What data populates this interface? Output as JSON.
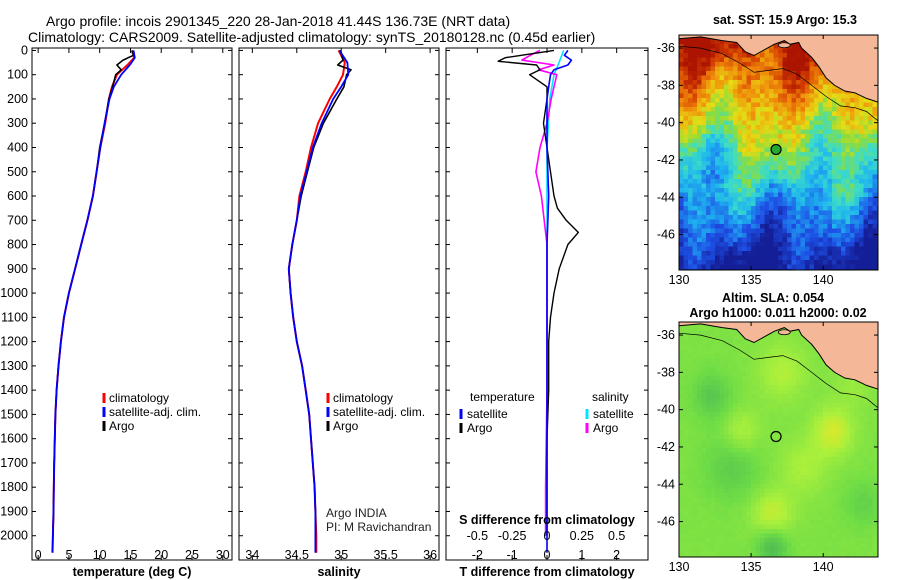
{
  "title": {
    "line1": "Argo profile: incois 2901345_220 28-Jan-2018 41.44S 136.73E (NRT data)",
    "line2": "Climatology: CARS2009. Satellite-adjusted climatology: synTS_20180128.nc (0.45d earlier)"
  },
  "depth_ticks": [
    "0",
    "100",
    "200",
    "300",
    "400",
    "500",
    "600",
    "700",
    "800",
    "900",
    "1000",
    "1100",
    "1200",
    "1300",
    "1400",
    "1500",
    "1600",
    "1700",
    "1800",
    "1900",
    "2000"
  ],
  "colors": {
    "climatology": "#ff0000",
    "satellite": "#0000ff",
    "argo": "#000000",
    "cyan": "#00e5ff",
    "magenta": "#ff00ff",
    "coast": "#000000",
    "land": "#f4b898"
  },
  "panels": [
    {
      "xlabel": "temperature (deg C)",
      "xticks": [
        0,
        5,
        10,
        15,
        20,
        25,
        30
      ],
      "xtick_labels": [
        "0",
        "5",
        "10",
        "15",
        "20",
        "25",
        "30"
      ],
      "xlim": [
        -1,
        31.5
      ],
      "legend": {
        "items": [
          {
            "label": "climatology",
            "color": "#ff0000"
          },
          {
            "label": "satellite-adj. clim.",
            "color": "#0000ff"
          },
          {
            "label": "Argo",
            "color": "#000000"
          }
        ]
      }
    },
    {
      "xlabel": "salinity",
      "xticks": [
        34,
        34.5,
        35,
        35.5,
        36
      ],
      "xtick_labels": [
        "34",
        "34.5",
        "35",
        "35.5",
        "36"
      ],
      "xlim": [
        33.85,
        36.1
      ],
      "legend": {
        "items": [
          {
            "label": "climatology",
            "color": "#ff0000"
          },
          {
            "label": "satellite-adj. clim.",
            "color": "#0000ff"
          },
          {
            "label": "Argo",
            "color": "#000000"
          }
        ]
      },
      "note": [
        "Argo INDIA",
        "PI: M Ravichandran"
      ]
    },
    {
      "xlabel": "T difference from climatology",
      "xticks": [
        -2,
        -1,
        0,
        1,
        2
      ],
      "xtick_labels": [
        "-2",
        "-1",
        "0",
        "1",
        "2"
      ],
      "xlim": [
        -2.9,
        2.9
      ],
      "sublabel": "S difference from climatology",
      "s_ticks": [
        "-0.5",
        "-0.25",
        "0",
        "0.25",
        "0.5"
      ],
      "legend": {
        "temperature_title": "temperature",
        "salinity_title": "salinity",
        "temperature_items": [
          {
            "label": "satellite",
            "color": "#0000ff"
          },
          {
            "label": "Argo",
            "color": "#000000"
          }
        ],
        "salinity_items": [
          {
            "label": "satellite",
            "color": "#00e5ff"
          },
          {
            "label": "Argo",
            "color": "#ff00ff"
          }
        ]
      }
    }
  ],
  "maps": [
    {
      "title_line1": "sat. SST: 15.9 Argo: 15.3",
      "title_line2": "",
      "lat_labels": [
        "-36",
        "-38",
        "-40",
        "-42",
        "-44",
        "-46"
      ],
      "lat_values": [
        -36,
        -38,
        -40,
        -42,
        -44,
        -46
      ],
      "lon_labels": [
        "130",
        "135",
        "140"
      ],
      "lon_values": [
        130,
        135,
        140
      ],
      "lon_range": [
        130,
        143.8
      ],
      "lat_range": [
        -47.9,
        -35.3
      ],
      "float_position": {
        "lon": 136.73,
        "lat": -41.44
      }
    },
    {
      "title_line1": "Altim. SLA: 0.054",
      "title_line2": "Argo h1000: 0.011 h2000: 0.02",
      "lat_labels": [
        "-36",
        "-38",
        "-40",
        "-42",
        "-44",
        "-46"
      ],
      "lat_values": [
        -36,
        -38,
        -40,
        -42,
        -44,
        -46
      ],
      "lon_labels": [
        "130",
        "135",
        "140"
      ],
      "lon_values": [
        130,
        135,
        140
      ],
      "lon_range": [
        130,
        143.8
      ],
      "lat_range": [
        -47.9,
        -35.3
      ],
      "float_position": {
        "lon": 136.73,
        "lat": -41.44
      }
    }
  ],
  "chart_data": {
    "type": "line",
    "y_axis": "depth (m)",
    "ylim": [
      2100,
      -10
    ],
    "profiles": {
      "temperature": {
        "climatology": [
          [
            15.2,
            0
          ],
          [
            15.6,
            30
          ],
          [
            14.5,
            60
          ],
          [
            12.8,
            100
          ],
          [
            12,
            150
          ],
          [
            11.5,
            200
          ],
          [
            10.9,
            300
          ],
          [
            10.1,
            400
          ],
          [
            9.5,
            500
          ],
          [
            8.9,
            600
          ],
          [
            8,
            700
          ],
          [
            7,
            800
          ],
          [
            6,
            900
          ],
          [
            5,
            1000
          ],
          [
            4.2,
            1100
          ],
          [
            3.7,
            1200
          ],
          [
            3.3,
            1300
          ],
          [
            3,
            1400
          ],
          [
            2.8,
            1500
          ],
          [
            2.7,
            1600
          ],
          [
            2.6,
            1700
          ],
          [
            2.55,
            1800
          ],
          [
            2.5,
            1900
          ],
          [
            2.4,
            2000
          ],
          [
            2.3,
            2070
          ]
        ],
        "satellite": [
          [
            15.5,
            0
          ],
          [
            15.7,
            30
          ],
          [
            14.9,
            60
          ],
          [
            13.5,
            100
          ],
          [
            12.3,
            150
          ],
          [
            11.6,
            200
          ],
          [
            10.8,
            300
          ],
          [
            10.1,
            400
          ],
          [
            9.5,
            500
          ],
          [
            8.9,
            600
          ],
          [
            8,
            700
          ],
          [
            7,
            800
          ],
          [
            6,
            900
          ],
          [
            5,
            1000
          ],
          [
            4.2,
            1100
          ],
          [
            3.7,
            1200
          ],
          [
            3.3,
            1300
          ],
          [
            3,
            1400
          ],
          [
            2.8,
            1500
          ],
          [
            2.7,
            1600
          ],
          [
            2.6,
            1700
          ],
          [
            2.55,
            1800
          ],
          [
            2.5,
            1900
          ],
          [
            2.4,
            2000
          ],
          [
            2.35,
            2070
          ]
        ],
        "argo": [
          [
            15.3,
            0
          ],
          [
            15.5,
            20
          ],
          [
            13.8,
            40
          ],
          [
            12.8,
            60
          ],
          [
            13.5,
            80
          ],
          [
            12.6,
            100
          ],
          [
            12.1,
            150
          ],
          [
            11.5,
            200
          ],
          [
            10.8,
            300
          ],
          [
            10,
            400
          ],
          [
            9.5,
            500
          ],
          [
            8.9,
            600
          ],
          [
            8,
            700
          ],
          [
            7,
            800
          ],
          [
            6,
            900
          ],
          [
            5,
            1000
          ],
          [
            4.2,
            1100
          ],
          [
            3.7,
            1200
          ],
          [
            3.3,
            1300
          ],
          [
            3,
            1400
          ],
          [
            2.8,
            1500
          ],
          [
            2.7,
            1600
          ],
          [
            2.6,
            1700
          ],
          [
            2.55,
            1800
          ],
          [
            2.5,
            1900
          ],
          [
            2.4,
            2000
          ]
        ]
      },
      "salinity": {
        "climatology": [
          [
            34.97,
            0
          ],
          [
            35.04,
            50
          ],
          [
            35.02,
            100
          ],
          [
            34.95,
            150
          ],
          [
            34.87,
            200
          ],
          [
            34.74,
            300
          ],
          [
            34.66,
            400
          ],
          [
            34.6,
            500
          ],
          [
            34.53,
            600
          ],
          [
            34.5,
            700
          ],
          [
            34.45,
            800
          ],
          [
            34.41,
            900
          ],
          [
            34.43,
            1000
          ],
          [
            34.46,
            1100
          ],
          [
            34.5,
            1200
          ],
          [
            34.56,
            1300
          ],
          [
            34.6,
            1400
          ],
          [
            34.64,
            1500
          ],
          [
            34.66,
            1600
          ],
          [
            34.68,
            1700
          ],
          [
            34.7,
            1800
          ],
          [
            34.71,
            1900
          ],
          [
            34.72,
            2000
          ],
          [
            34.72,
            2070
          ]
        ],
        "satellite": [
          [
            34.98,
            0
          ],
          [
            35.07,
            50
          ],
          [
            35.08,
            100
          ],
          [
            35,
            150
          ],
          [
            34.91,
            200
          ],
          [
            34.78,
            300
          ],
          [
            34.68,
            400
          ],
          [
            34.61,
            500
          ],
          [
            34.54,
            600
          ],
          [
            34.5,
            700
          ],
          [
            34.45,
            800
          ],
          [
            34.41,
            900
          ],
          [
            34.43,
            1000
          ],
          [
            34.46,
            1100
          ],
          [
            34.5,
            1200
          ],
          [
            34.56,
            1300
          ],
          [
            34.6,
            1400
          ],
          [
            34.64,
            1500
          ],
          [
            34.66,
            1600
          ],
          [
            34.68,
            1700
          ],
          [
            34.7,
            1800
          ],
          [
            34.71,
            1900
          ],
          [
            34.71,
            2000
          ],
          [
            34.71,
            2070
          ]
        ],
        "argo": [
          [
            34.99,
            0
          ],
          [
            35.02,
            40
          ],
          [
            34.96,
            60
          ],
          [
            35.11,
            80
          ],
          [
            35.06,
            100
          ],
          [
            35.03,
            150
          ],
          [
            34.95,
            200
          ],
          [
            34.8,
            300
          ],
          [
            34.69,
            400
          ],
          [
            34.62,
            500
          ],
          [
            34.55,
            600
          ],
          [
            34.5,
            700
          ],
          [
            34.45,
            800
          ],
          [
            34.41,
            900
          ],
          [
            34.43,
            1000
          ],
          [
            34.46,
            1100
          ],
          [
            34.5,
            1200
          ],
          [
            34.56,
            1300
          ],
          [
            34.6,
            1400
          ],
          [
            34.64,
            1500
          ],
          [
            34.66,
            1600
          ],
          [
            34.68,
            1700
          ],
          [
            34.7,
            1800
          ],
          [
            34.71,
            1900
          ],
          [
            34.71,
            2000
          ]
        ]
      },
      "t_difference": {
        "satellite": [
          [
            0.6,
            0
          ],
          [
            0.5,
            20
          ],
          [
            0.7,
            40
          ],
          [
            0.6,
            60
          ],
          [
            0.2,
            80
          ],
          [
            0.1,
            100
          ],
          [
            0.05,
            150
          ],
          [
            0,
            200
          ],
          [
            0,
            400
          ],
          [
            0.05,
            600
          ],
          [
            0,
            800
          ],
          [
            0,
            1000
          ],
          [
            0,
            1200
          ],
          [
            0,
            1400
          ],
          [
            0,
            1600
          ],
          [
            0,
            1800
          ],
          [
            0,
            2000
          ],
          [
            0,
            2070
          ]
        ],
        "argo": [
          [
            0.2,
            0
          ],
          [
            -1.2,
            30
          ],
          [
            -1.4,
            45
          ],
          [
            -0.3,
            60
          ],
          [
            -0.2,
            80
          ],
          [
            -0.5,
            100
          ],
          [
            0,
            150
          ],
          [
            0,
            200
          ],
          [
            -0.1,
            300
          ],
          [
            0,
            400
          ],
          [
            0.1,
            500
          ],
          [
            0.2,
            600
          ],
          [
            0.3,
            650
          ],
          [
            0.55,
            700
          ],
          [
            0.9,
            750
          ],
          [
            0.6,
            800
          ],
          [
            0.35,
            900
          ],
          [
            0.2,
            1000
          ],
          [
            0.1,
            1100
          ],
          [
            0.05,
            1200
          ],
          [
            0.05,
            1400
          ],
          [
            0,
            1600
          ],
          [
            0,
            2000
          ]
        ]
      },
      "s_difference": {
        "satellite": [
          [
            0.12,
            0
          ],
          [
            0.1,
            30
          ],
          [
            0.08,
            60
          ],
          [
            0.05,
            100
          ],
          [
            0.02,
            200
          ],
          [
            0,
            400
          ],
          [
            0,
            800
          ],
          [
            0,
            1200
          ],
          [
            0,
            1600
          ],
          [
            -0.01,
            2000
          ]
        ],
        "argo": [
          [
            -0.05,
            0
          ],
          [
            -0.12,
            20
          ],
          [
            -0.18,
            40
          ],
          [
            0.05,
            60
          ],
          [
            -0.06,
            80
          ],
          [
            0.07,
            100
          ],
          [
            0.05,
            150
          ],
          [
            0.03,
            200
          ],
          [
            0,
            300
          ],
          [
            -0.05,
            400
          ],
          [
            -0.08,
            500
          ],
          [
            -0.04,
            600
          ],
          [
            -0.02,
            700
          ],
          [
            0,
            800
          ],
          [
            0,
            1000
          ],
          [
            0,
            1400
          ],
          [
            -0.01,
            1800
          ],
          [
            -0.01,
            2000
          ]
        ]
      }
    }
  }
}
